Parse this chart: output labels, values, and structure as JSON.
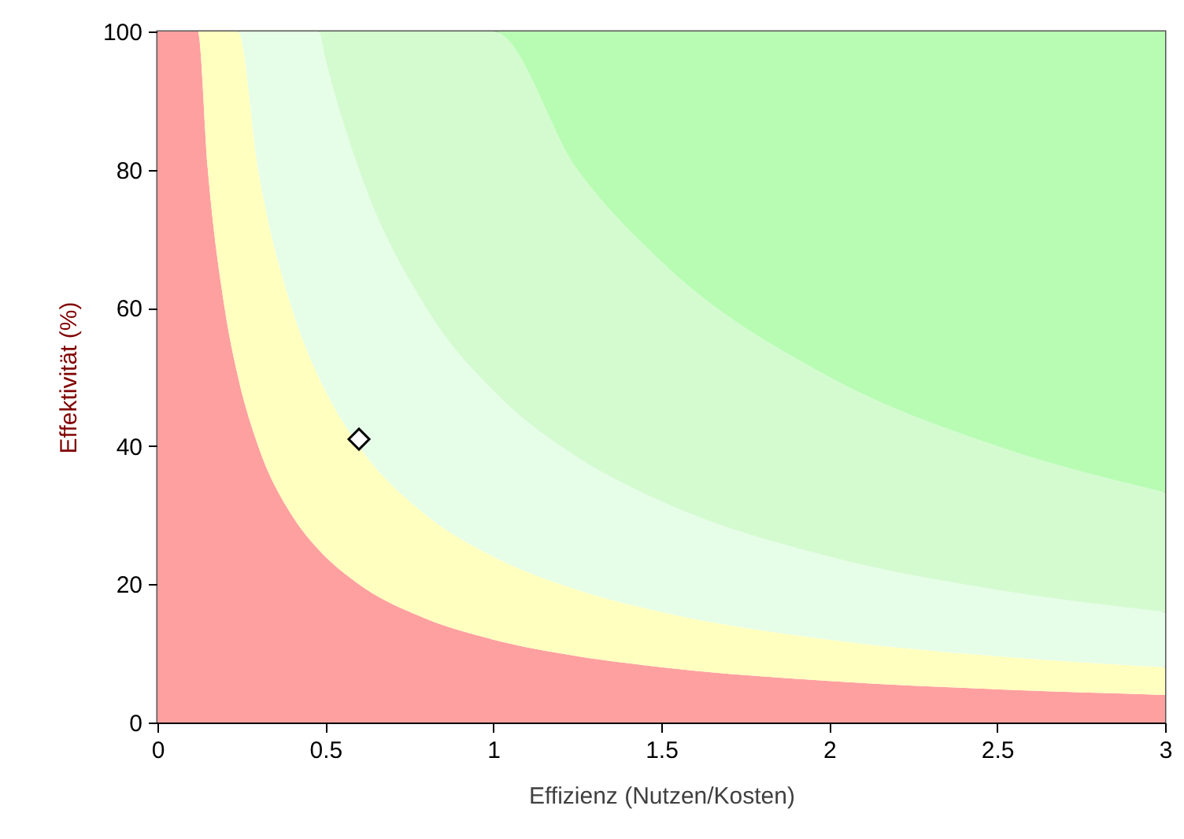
{
  "chart_data": {
    "type": "area",
    "stacked": true,
    "xlabel": "Effizienz (Nutzen/Kosten)",
    "ylabel": "Effektivität (%)",
    "xlim": [
      0,
      3
    ],
    "xticks": [
      0,
      0.5,
      1,
      1.5,
      2,
      2.5,
      3
    ],
    "ylim": [
      0,
      100
    ],
    "yticks": [
      0,
      20,
      40,
      60,
      80,
      100
    ],
    "grid": false,
    "x": [
      0,
      0.12,
      0.15,
      0.2,
      0.24,
      0.3,
      0.4,
      0.48,
      0.5,
      0.6,
      0.8,
      1,
      1.25,
      1.5,
      2,
      2.5,
      3
    ],
    "series": [
      {
        "color": "#ffa0a0",
        "values": [
          100,
          100,
          80,
          60,
          50,
          40,
          30,
          25,
          24,
          20,
          15,
          12,
          9.6,
          8,
          6,
          4.8,
          4
        ]
      },
      {
        "color": "#ffffc0",
        "values": [
          0,
          0,
          20,
          40,
          50,
          40,
          30,
          25,
          24,
          20,
          15,
          12,
          9.6,
          8,
          6,
          4.8,
          4
        ]
      },
      {
        "color": "#e6fde8",
        "values": [
          0,
          0,
          0,
          0,
          0,
          20,
          40,
          50,
          48,
          40,
          30,
          24,
          19.2,
          16,
          12,
          9.6,
          8
        ]
      },
      {
        "color": "#d4fbd0",
        "values": [
          0,
          0,
          0,
          0,
          0,
          0,
          0,
          0,
          4,
          20,
          40,
          52,
          41.6,
          34.7,
          26,
          20.8,
          17.3
        ]
      },
      {
        "color": "#b8fcb4",
        "values": [
          0,
          0,
          0,
          0,
          0,
          0,
          0,
          0,
          0,
          0,
          0,
          0,
          20,
          33.3,
          50,
          60,
          66.7
        ]
      },
      {
        "type": "scatter",
        "marker": "diamond",
        "color": "#ffffff",
        "x": [
          0.6
        ],
        "values": [
          41
        ]
      }
    ]
  }
}
